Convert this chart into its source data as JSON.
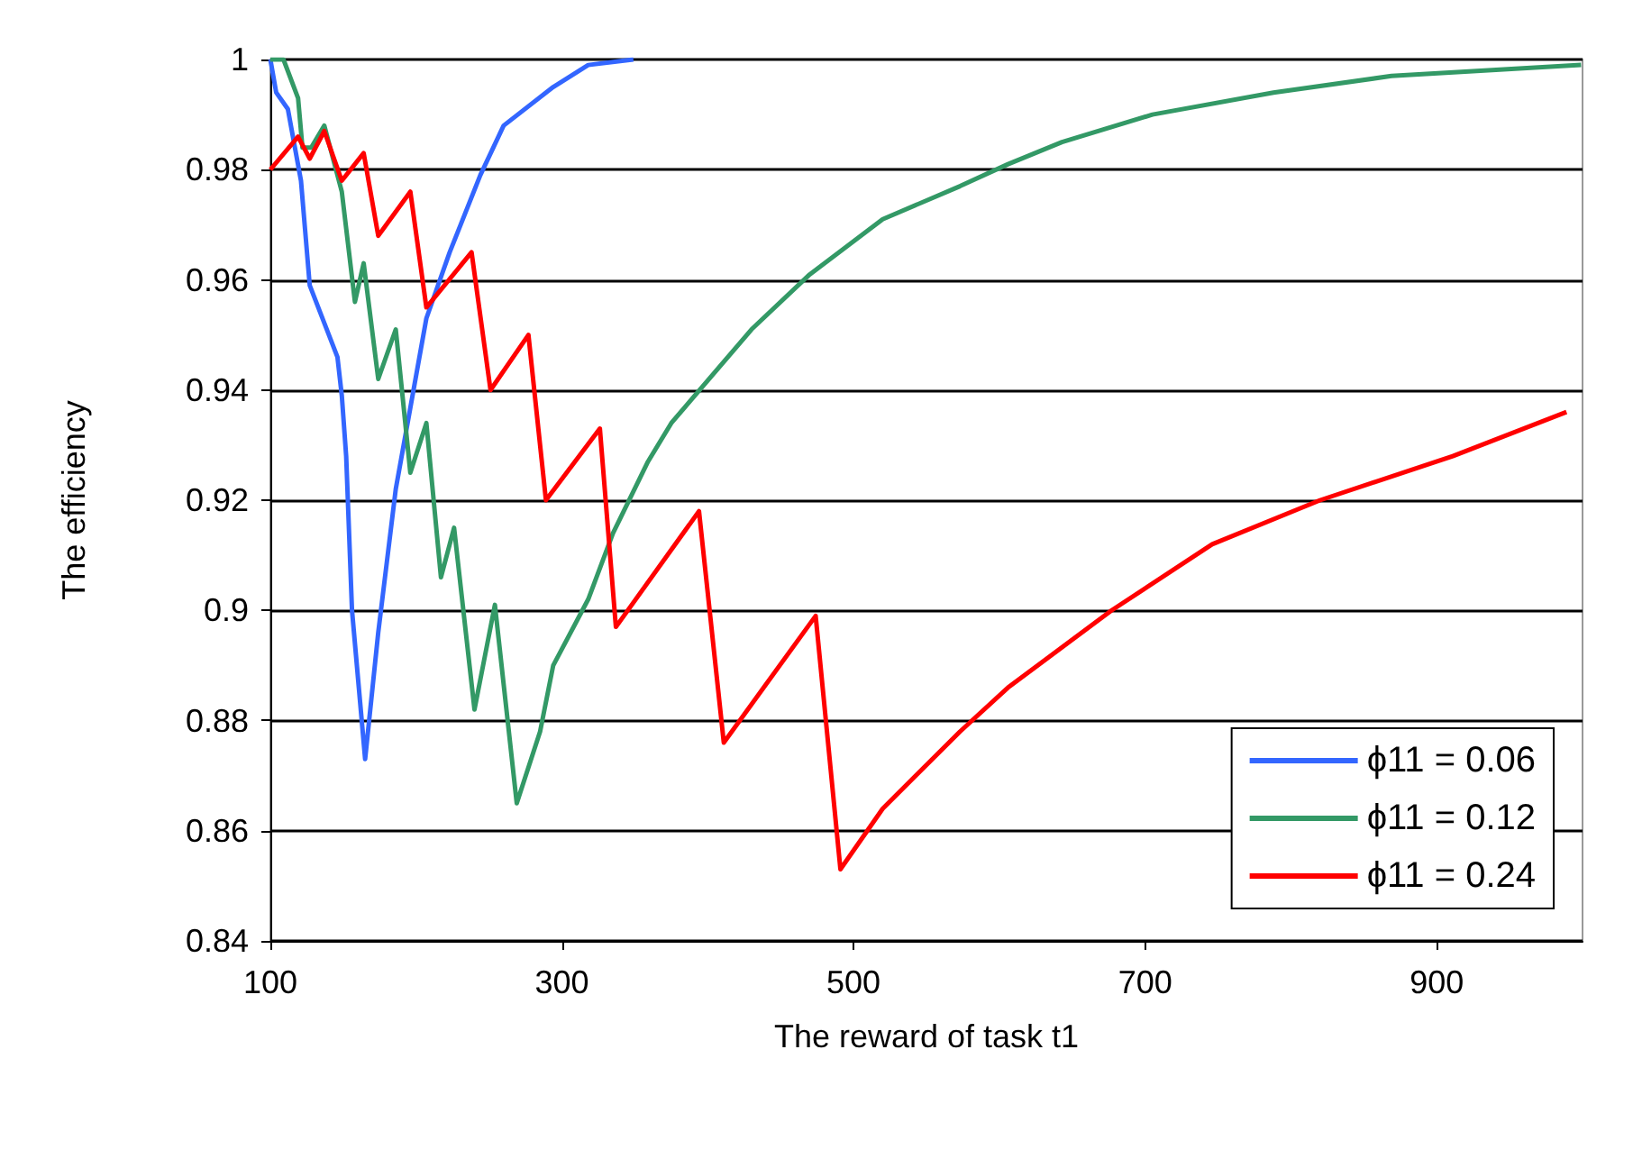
{
  "chart_data": {
    "type": "line",
    "xlabel": "The reward of task t1",
    "ylabel": "The efficiency",
    "xlim": [
      100,
      1000
    ],
    "xticks": [
      100,
      300,
      500,
      700,
      900
    ],
    "ylim": [
      0.84,
      1
    ],
    "yticks": [
      0.84,
      0.86,
      0.88,
      0.9,
      0.92,
      0.94,
      0.96,
      0.98,
      1
    ],
    "grid": "y",
    "legend": "bottom right",
    "marker": "none",
    "line_style": "solid",
    "series": [
      {
        "name": "ϕ11 = 0.06",
        "color": "#3366ff",
        "x": [
          100,
          104,
          112,
          121,
          127,
          146,
          149,
          152,
          156,
          165,
          174,
          186,
          207,
          223,
          244,
          260,
          294,
          318,
          349
        ],
        "values": [
          1,
          0.994,
          0.991,
          0.978,
          0.959,
          0.946,
          0.939,
          0.928,
          0.9,
          0.873,
          0.896,
          0.922,
          0.953,
          0.965,
          0.979,
          0.988,
          0.995,
          0.999,
          1
        ]
      },
      {
        "name": "ϕ11 = 0.12",
        "color": "#339966",
        "x": [
          100,
          109,
          119,
          122,
          128,
          137,
          149,
          158,
          164,
          174,
          186,
          196,
          207,
          217,
          226,
          240,
          254,
          269,
          285,
          294,
          318,
          335,
          359,
          375,
          430,
          470,
          520,
          573,
          606,
          643,
          705,
          788,
          869,
          999
        ],
        "values": [
          1,
          1,
          0.993,
          0.984,
          0.984,
          0.988,
          0.976,
          0.956,
          0.963,
          0.942,
          0.951,
          0.925,
          0.934,
          0.906,
          0.915,
          0.882,
          0.901,
          0.865,
          0.878,
          0.89,
          0.902,
          0.914,
          0.927,
          0.934,
          0.951,
          0.961,
          0.971,
          0.977,
          0.981,
          0.985,
          0.99,
          0.994,
          0.997,
          0.999
        ]
      },
      {
        "name": "ϕ11 = 0.24",
        "color": "#ff0000",
        "x": [
          100,
          119,
          127,
          137,
          149,
          164,
          174,
          196,
          207,
          238,
          251,
          277,
          289,
          326,
          337,
          394,
          411,
          474,
          491,
          520,
          573,
          606,
          677,
          746,
          820,
          911,
          989
        ],
        "values": [
          0.98,
          0.986,
          0.982,
          0.987,
          0.978,
          0.983,
          0.968,
          0.976,
          0.955,
          0.965,
          0.94,
          0.95,
          0.92,
          0.933,
          0.897,
          0.918,
          0.876,
          0.899,
          0.853,
          0.864,
          0.878,
          0.886,
          0.9,
          0.912,
          0.92,
          0.928,
          0.936
        ]
      }
    ]
  }
}
